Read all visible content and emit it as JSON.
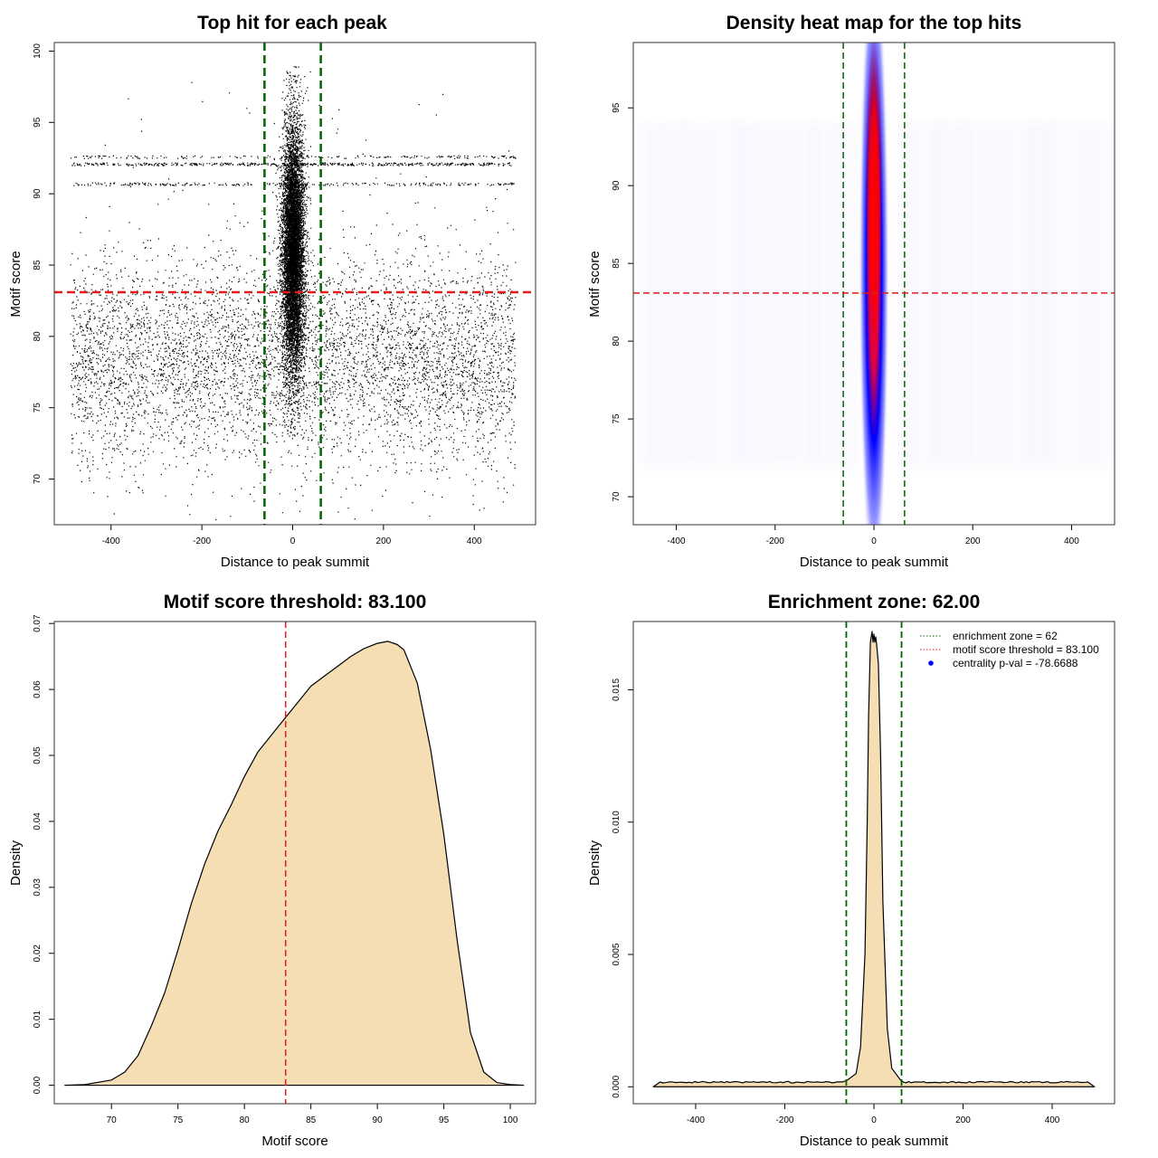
{
  "chart_data": [
    {
      "id": "scatter",
      "type": "scatter",
      "title": "Top hit for each peak",
      "xlabel": "Distance to peak summit",
      "ylabel": "Motif score",
      "xlim": [
        -525,
        535
      ],
      "ylim": [
        66.8,
        100.6
      ],
      "xticks": [
        -400,
        -200,
        0,
        200,
        400
      ],
      "yticks": [
        70,
        75,
        80,
        85,
        90,
        95,
        100
      ],
      "point_color": "#000000",
      "background_points": {
        "x_range": [
          -490,
          490
        ],
        "y_range": [
          71,
          94
        ],
        "note": "uniform background hits across the window"
      },
      "central_cluster": {
        "x_mean": 0,
        "x_sd": 12,
        "y_range": [
          73,
          99
        ],
        "y_mode": 86
      },
      "enrichment_zone": [
        -62,
        62
      ],
      "enrichment_color": "#006400",
      "threshold": 83.1,
      "threshold_color": "#e41a1c"
    },
    {
      "id": "heatmap",
      "type": "heatmap",
      "title": "Density heat map for the top hits",
      "xlabel": "Distance to peak summit",
      "ylabel": "Motif score",
      "xlim": [
        -487,
        487
      ],
      "ylim": [
        68.2,
        99.2
      ],
      "xticks": [
        -400,
        -200,
        0,
        200,
        400
      ],
      "yticks": [
        70,
        75,
        80,
        85,
        90,
        95
      ],
      "hotspot": {
        "x": 0,
        "y": 90,
        "x_sd": 14,
        "y_sd": 5,
        "colors": [
          "#ffffff",
          "#0000ff",
          "#ff0000"
        ]
      },
      "enrichment_zone": [
        -62,
        62
      ],
      "threshold": 83.1
    },
    {
      "id": "score-density",
      "type": "area",
      "title": "Motif score threshold: 83.100",
      "xlabel": "Motif score",
      "ylabel": "Density",
      "xlim": [
        65.7,
        101.9
      ],
      "ylim": [
        -0.0028,
        0.0703
      ],
      "xticks": [
        70,
        75,
        80,
        85,
        90,
        95,
        100
      ],
      "yticks": [
        0.0,
        0.01,
        0.02,
        0.03,
        0.04,
        0.05,
        0.06,
        0.07
      ],
      "ytick_labels": [
        "0.00",
        "0.01",
        "0.02",
        "0.03",
        "0.04",
        "0.05",
        "0.06",
        "0.07"
      ],
      "fill": "#f5deb3",
      "x": [
        66.5,
        68,
        70,
        71,
        72,
        73,
        74,
        75,
        76,
        77,
        78,
        79,
        80,
        81,
        82,
        83,
        84,
        85,
        86,
        87,
        88,
        89,
        90,
        90.8,
        91.5,
        92,
        93,
        94,
        95,
        96,
        97,
        98,
        99,
        100,
        101
      ],
      "y": [
        0.0,
        0.0001,
        0.0008,
        0.002,
        0.0045,
        0.009,
        0.014,
        0.0205,
        0.0275,
        0.0335,
        0.0385,
        0.0425,
        0.0468,
        0.0505,
        0.053,
        0.0555,
        0.058,
        0.0605,
        0.062,
        0.0635,
        0.065,
        0.0662,
        0.067,
        0.0673,
        0.0668,
        0.066,
        0.061,
        0.051,
        0.038,
        0.022,
        0.008,
        0.002,
        0.0004,
        0.0001,
        0.0
      ],
      "threshold": 83.1,
      "threshold_color": "#e41a1c"
    },
    {
      "id": "distance-density",
      "type": "area",
      "title": "Enrichment zone: 62.00",
      "xlabel": "Distance to peak summit",
      "ylabel": "Density",
      "xlim": [
        -540,
        540
      ],
      "ylim": [
        -0.00064,
        0.01758
      ],
      "xticks": [
        -400,
        -200,
        0,
        200,
        400
      ],
      "yticks": [
        0.0,
        0.005,
        0.01,
        0.015
      ],
      "ytick_labels": [
        "0.000",
        "0.005",
        "0.010",
        "0.015"
      ],
      "fill": "#f5deb3",
      "x": [
        -495,
        -480,
        -300,
        -100,
        -60,
        -40,
        -30,
        -20,
        -15,
        -12,
        -8,
        -4,
        -2,
        0,
        2,
        4,
        6,
        10,
        15,
        20,
        30,
        40,
        60,
        100,
        300,
        480,
        495
      ],
      "y": [
        0.0,
        0.00018,
        0.00017,
        0.00018,
        0.00025,
        0.0005,
        0.0015,
        0.005,
        0.01,
        0.014,
        0.0168,
        0.0172,
        0.0168,
        0.0171,
        0.0168,
        0.017,
        0.0167,
        0.016,
        0.0125,
        0.007,
        0.0022,
        0.0007,
        0.00025,
        0.00018,
        0.00017,
        0.00018,
        0.0
      ],
      "enrichment_zone": [
        -62,
        62
      ],
      "legend": [
        {
          "label": "enrichment zone = 62",
          "style": "dotted",
          "color": "#006400"
        },
        {
          "label": "motif score threshold = 83.100",
          "style": "dotted",
          "color": "#e41a1c"
        },
        {
          "label": "centrality p-val = -78.6688",
          "style": "point",
          "color": "#0000ff"
        }
      ],
      "legend_position": "top-right"
    }
  ]
}
